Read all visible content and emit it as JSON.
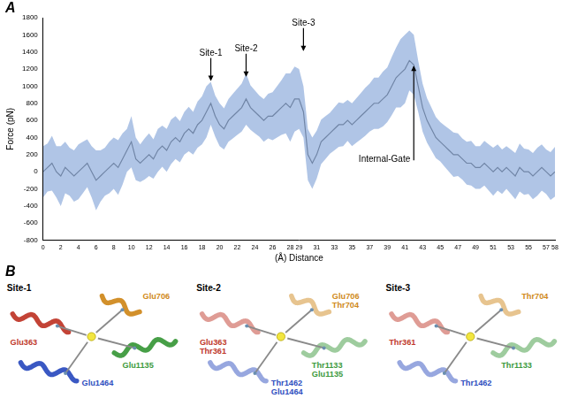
{
  "chart_data": {
    "type": "line",
    "panel": "A",
    "x_label": "(Å) Distance",
    "y_label": "Force (pN)",
    "x": [
      0,
      0.5,
      1,
      1.5,
      2,
      2.5,
      3,
      3.5,
      4,
      4.5,
      5,
      5.5,
      6,
      6.5,
      7,
      7.5,
      8,
      8.5,
      9,
      9.5,
      10,
      10.5,
      11,
      11.5,
      12,
      12.5,
      13,
      13.5,
      14,
      14.5,
      15,
      15.5,
      16,
      16.5,
      17,
      17.5,
      18,
      18.5,
      19,
      19.5,
      20,
      20.5,
      21,
      21.5,
      22,
      22.5,
      23,
      23.5,
      24,
      24.5,
      25,
      25.5,
      26,
      26.5,
      27,
      27.5,
      28,
      28.5,
      29,
      29.5,
      30,
      30.5,
      31,
      31.5,
      32,
      32.5,
      33,
      33.5,
      34,
      34.5,
      35,
      35.5,
      36,
      36.5,
      37,
      37.5,
      38,
      38.5,
      39,
      39.5,
      40,
      40.5,
      41,
      41.5,
      42,
      42.5,
      43,
      43.5,
      44,
      44.5,
      45,
      45.5,
      46,
      46.5,
      47,
      47.5,
      48,
      48.5,
      49,
      49.5,
      50,
      50.5,
      51,
      51.5,
      52,
      52.5,
      53,
      53.5,
      54,
      54.5,
      55,
      55.5,
      56,
      56.5,
      57,
      57.5,
      58
    ],
    "series": [
      {
        "color": "#000000",
        "values": [
          0,
          50,
          100,
          0,
          -50,
          50,
          0,
          -50,
          0,
          50,
          100,
          0,
          -100,
          -50,
          0,
          50,
          100,
          50,
          150,
          250,
          350,
          150,
          100,
          150,
          200,
          150,
          250,
          300,
          250,
          350,
          400,
          350,
          450,
          500,
          450,
          550,
          600,
          700,
          800,
          650,
          550,
          500,
          600,
          650,
          700,
          750,
          850,
          750,
          700,
          650,
          600,
          650,
          650,
          700,
          750,
          800,
          750,
          850,
          850,
          700,
          200,
          100,
          200,
          350,
          400,
          450,
          500,
          550,
          550,
          600,
          550,
          600,
          650,
          700,
          750,
          800,
          800,
          850,
          900,
          1000,
          1100,
          1150,
          1200,
          1300,
          1250,
          1000,
          750,
          600,
          500,
          400,
          350,
          300,
          250,
          200,
          200,
          150,
          100,
          100,
          50,
          50,
          100,
          50,
          0,
          50,
          0,
          50,
          0,
          -50,
          50,
          0,
          0,
          -50,
          0,
          50,
          0,
          -50,
          0
        ],
        "error": [
          300,
          280,
          320,
          300,
          350,
          300,
          280,
          300,
          320,
          300,
          280,
          300,
          350,
          300,
          280,
          300,
          300,
          320,
          300,
          250,
          300,
          250,
          220,
          240,
          250,
          230,
          250,
          240,
          250,
          260,
          250,
          240,
          250,
          260,
          250,
          270,
          280,
          300,
          250,
          240,
          250,
          240,
          250,
          260,
          270,
          280,
          300,
          260,
          250,
          240,
          250,
          260,
          280,
          300,
          320,
          350,
          400,
          380,
          350,
          300,
          300,
          300,
          280,
          260,
          250,
          240,
          250,
          260,
          250,
          240,
          250,
          260,
          270,
          280,
          280,
          300,
          300,
          320,
          320,
          340,
          350,
          400,
          400,
          350,
          350,
          300,
          280,
          260,
          250,
          240,
          230,
          240,
          250,
          260,
          250,
          240,
          250,
          260,
          250,
          250,
          260,
          270,
          280,
          270,
          260,
          250,
          260,
          270,
          280,
          270,
          260,
          270,
          280,
          270,
          260,
          280,
          290
        ]
      }
    ],
    "xlim": [
      0,
      58
    ],
    "xticks": [
      0,
      2,
      4,
      6,
      8,
      10,
      12,
      14,
      16,
      18,
      20,
      22,
      24,
      26,
      28,
      29,
      31,
      33,
      35,
      37,
      39,
      41,
      43,
      45,
      47,
      49,
      51,
      53,
      55,
      57,
      58
    ],
    "ylim": [
      -800,
      1800
    ],
    "yticks": [
      -800,
      -600,
      -400,
      -200,
      0,
      200,
      400,
      600,
      800,
      1000,
      1200,
      1400,
      1600,
      1800
    ],
    "grid": false,
    "annotations": [
      {
        "text": "Site-1",
        "x": 19,
        "y": 1050
      },
      {
        "text": "Site-2",
        "x": 23,
        "y": 1100
      },
      {
        "text": "Site-3",
        "x": 29.5,
        "y": 1400
      }
    ],
    "gate": {
      "text": "Internal-Gate",
      "x": 42,
      "y": 1250
    }
  },
  "panel_b": {
    "panel": "B",
    "sites": [
      {
        "title": "Site-1",
        "residues": [
          {
            "color": "#c0392b",
            "labels": [
              "Glu363"
            ]
          },
          {
            "color": "#d08a20",
            "labels": [
              "Glu706"
            ]
          },
          {
            "color": "#3d9a3d",
            "labels": [
              "Glu1135"
            ]
          },
          {
            "color": "#2f4fc0",
            "labels": [
              "Glu1464"
            ]
          }
        ]
      },
      {
        "title": "Site-2",
        "residues": [
          {
            "color": "#c0392b",
            "labels": [
              "Glu363",
              "Thr361"
            ]
          },
          {
            "color": "#d08a20",
            "labels": [
              "Glu706",
              "Thr704"
            ]
          },
          {
            "color": "#3d9a3d",
            "labels": [
              "Thr1133",
              "Glu1135"
            ]
          },
          {
            "color": "#2f4fc0",
            "labels": [
              "Thr1462",
              "Glu1464"
            ]
          }
        ]
      },
      {
        "title": "Site-3",
        "residues": [
          {
            "color": "#c0392b",
            "labels": [
              "Thr361"
            ]
          },
          {
            "color": "#d08a20",
            "labels": [
              "Thr704"
            ]
          },
          {
            "color": "#3d9a3d",
            "labels": [
              "Thr1133"
            ]
          },
          {
            "color": "#2f4fc0",
            "labels": [
              "Thr1462"
            ]
          }
        ]
      }
    ]
  }
}
